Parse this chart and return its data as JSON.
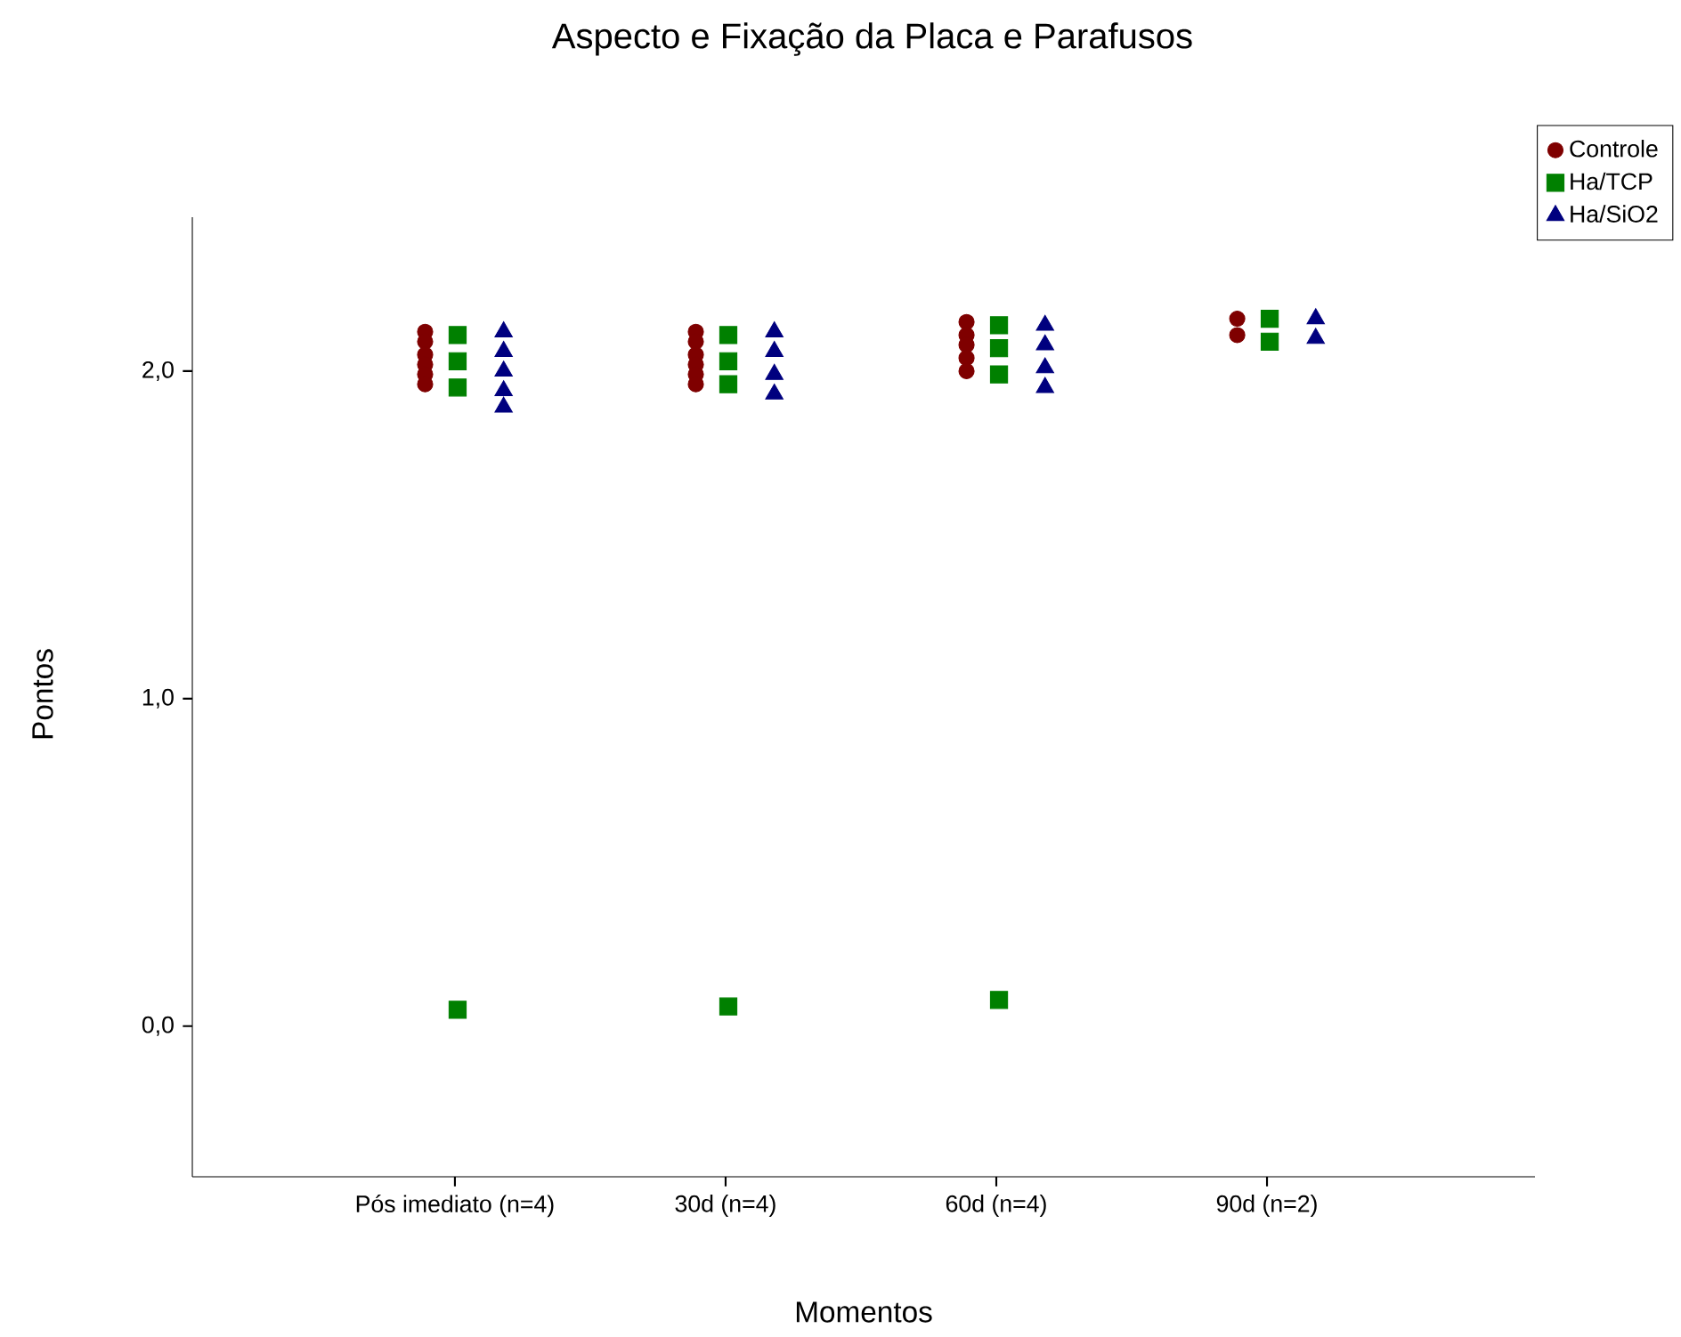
{
  "chart_data": {
    "type": "scatter",
    "title": "Aspecto e Fixação da Placa e Parafusos",
    "xlabel": "Momentos",
    "ylabel": "Pontos",
    "categories": [
      "Pós imediato (n=4)",
      "30d (n=4)",
      "60d (n=4)",
      "90d (n=2)"
    ],
    "ylim": [
      -0.46,
      2.47
    ],
    "yticks": [
      {
        "value": 0,
        "label": "0,0"
      },
      {
        "value": 1,
        "label": "1,0"
      },
      {
        "value": 2,
        "label": "2,0"
      }
    ],
    "legend": "top right",
    "grid": false,
    "series": [
      {
        "name": "Controle",
        "color": "#7f0000",
        "marker": "circle",
        "x": [
          "Pós imediato (n=4)",
          "Pós imediato (n=4)",
          "Pós imediato (n=4)",
          "Pós imediato (n=4)",
          "Pós imediato (n=4)",
          "Pós imediato (n=4)",
          "30d (n=4)",
          "30d (n=4)",
          "30d (n=4)",
          "30d (n=4)",
          "30d (n=4)",
          "30d (n=4)",
          "60d (n=4)",
          "60d (n=4)",
          "60d (n=4)",
          "60d (n=4)",
          "60d (n=4)",
          "90d (n=2)",
          "90d (n=2)"
        ],
        "values": [
          2.12,
          2.09,
          2.05,
          2.02,
          1.99,
          1.96,
          2.12,
          2.09,
          2.05,
          2.02,
          1.99,
          1.96,
          2.15,
          2.11,
          2.08,
          2.04,
          2.0,
          2.16,
          2.11
        ]
      },
      {
        "name": "Ha/TCP",
        "color": "#008000",
        "marker": "square",
        "x": [
          "Pós imediato (n=4)",
          "Pós imediato (n=4)",
          "Pós imediato (n=4)",
          "Pós imediato (n=4)",
          "30d (n=4)",
          "30d (n=4)",
          "30d (n=4)",
          "30d (n=4)",
          "60d (n=4)",
          "60d (n=4)",
          "60d (n=4)",
          "60d (n=4)",
          "90d (n=2)",
          "90d (n=2)"
        ],
        "values": [
          2.11,
          2.03,
          1.95,
          0.05,
          2.11,
          2.03,
          1.96,
          0.06,
          2.14,
          2.07,
          1.99,
          0.08,
          2.16,
          2.09
        ]
      },
      {
        "name": "Ha/SiO2",
        "color": "#00007f",
        "marker": "triangle",
        "x": [
          "Pós imediato (n=4)",
          "Pós imediato (n=4)",
          "Pós imediato (n=4)",
          "Pós imediato (n=4)",
          "Pós imediato (n=4)",
          "30d (n=4)",
          "30d (n=4)",
          "30d (n=4)",
          "30d (n=4)",
          "60d (n=4)",
          "60d (n=4)",
          "60d (n=4)",
          "60d (n=4)",
          "90d (n=2)",
          "90d (n=2)"
        ],
        "values": [
          2.12,
          2.06,
          2.0,
          1.94,
          1.89,
          2.12,
          2.06,
          1.99,
          1.93,
          2.14,
          2.08,
          2.01,
          1.95,
          2.16,
          2.1
        ]
      }
    ]
  }
}
